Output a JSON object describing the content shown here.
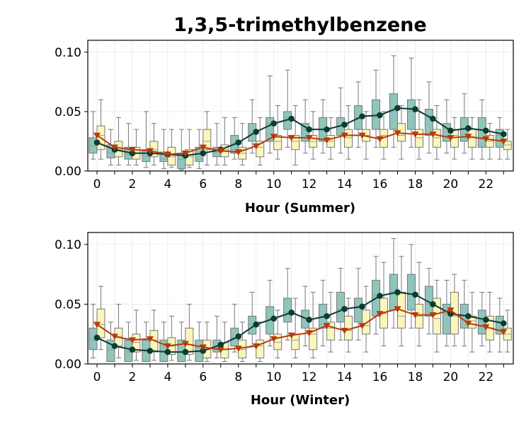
{
  "chart_data": {
    "title": "1,3,5-trimethylbenzene",
    "type": "box",
    "colors": {
      "box_a_fill": "#8fc5bb",
      "box_b_fill": "#fbf6bd",
      "line_a": "#0c3b30",
      "line_b": "#b83b08",
      "whisker": "#777777"
    },
    "panels": [
      {
        "xlabel": "Hour (Summer)",
        "ylim": [
          0,
          0.11
        ],
        "yticks": [
          0.0,
          0.05,
          0.1
        ],
        "ytick_labels": [
          "0.00",
          "0.05",
          "0.10"
        ],
        "xticks": [
          0,
          2,
          4,
          6,
          8,
          10,
          12,
          14,
          16,
          18,
          20,
          22
        ],
        "xtick_labels": [
          "0",
          "2",
          "4",
          "6",
          "8",
          "10",
          "12",
          "14",
          "16",
          "18",
          "20",
          "22"
        ],
        "series": [
          {
            "marker": "circle",
            "line": [
              0.024,
              0.018,
              0.015,
              0.015,
              0.014,
              0.013,
              0.015,
              0.018,
              0.024,
              0.033,
              0.04,
              0.044,
              0.035,
              0.035,
              0.039,
              0.046,
              0.047,
              0.053,
              0.052,
              0.044,
              0.034,
              0.036,
              0.034,
              0.031
            ],
            "boxes": [
              [
                0.01,
                0.015,
                0.021,
                0.028,
                0.05
              ],
              [
                0.005,
                0.011,
                0.015,
                0.022,
                0.035
              ],
              [
                0.005,
                0.01,
                0.014,
                0.02,
                0.04
              ],
              [
                0.003,
                0.008,
                0.012,
                0.018,
                0.05
              ],
              [
                0.002,
                0.008,
                0.01,
                0.016,
                0.035
              ],
              [
                0.001,
                0.002,
                0.01,
                0.015,
                0.035
              ],
              [
                0.002,
                0.008,
                0.01,
                0.02,
                0.035
              ],
              [
                0.005,
                0.012,
                0.016,
                0.02,
                0.04
              ],
              [
                0.01,
                0.015,
                0.022,
                0.03,
                0.045
              ],
              [
                0.015,
                0.025,
                0.032,
                0.04,
                0.06
              ],
              [
                0.015,
                0.025,
                0.04,
                0.045,
                0.08
              ],
              [
                0.02,
                0.035,
                0.045,
                0.05,
                0.085
              ],
              [
                0.015,
                0.025,
                0.035,
                0.04,
                0.06
              ],
              [
                0.015,
                0.025,
                0.035,
                0.045,
                0.06
              ],
              [
                0.015,
                0.03,
                0.038,
                0.045,
                0.07
              ],
              [
                0.02,
                0.035,
                0.045,
                0.055,
                0.075
              ],
              [
                0.02,
                0.035,
                0.045,
                0.06,
                0.085
              ],
              [
                0.02,
                0.035,
                0.05,
                0.065,
                0.097
              ],
              [
                0.02,
                0.035,
                0.05,
                0.06,
                0.095
              ],
              [
                0.015,
                0.03,
                0.045,
                0.052,
                0.075
              ],
              [
                0.015,
                0.025,
                0.035,
                0.04,
                0.06
              ],
              [
                0.015,
                0.025,
                0.035,
                0.045,
                0.065
              ],
              [
                0.01,
                0.02,
                0.035,
                0.045,
                0.06
              ],
              [
                0.01,
                0.02,
                0.03,
                0.035,
                0.045
              ]
            ]
          },
          {
            "marker": "triangle-down",
            "line": [
              0.03,
              0.02,
              0.018,
              0.017,
              0.014,
              0.015,
              0.02,
              0.017,
              0.016,
              0.021,
              0.029,
              0.028,
              0.028,
              0.026,
              0.03,
              0.03,
              0.027,
              0.032,
              0.031,
              0.031,
              0.028,
              0.029,
              0.027,
              0.025
            ],
            "boxes": [
              [
                0.01,
                0.018,
                0.03,
                0.038,
                0.06
              ],
              [
                0.005,
                0.012,
                0.018,
                0.025,
                0.045
              ],
              [
                0.005,
                0.01,
                0.015,
                0.02,
                0.035
              ],
              [
                0.005,
                0.012,
                0.018,
                0.025,
                0.04
              ],
              [
                0.003,
                0.005,
                0.012,
                0.02,
                0.035
              ],
              [
                0.003,
                0.005,
                0.012,
                0.018,
                0.035
              ],
              [
                0.005,
                0.018,
                0.025,
                0.035,
                0.05
              ],
              [
                0.005,
                0.012,
                0.018,
                0.022,
                0.045
              ],
              [
                0.005,
                0.01,
                0.015,
                0.02,
                0.04
              ],
              [
                0.005,
                0.012,
                0.02,
                0.025,
                0.045
              ],
              [
                0.01,
                0.018,
                0.025,
                0.03,
                0.055
              ],
              [
                0.005,
                0.018,
                0.025,
                0.03,
                0.055
              ],
              [
                0.01,
                0.02,
                0.025,
                0.03,
                0.05
              ],
              [
                0.01,
                0.02,
                0.025,
                0.03,
                0.045
              ],
              [
                0.01,
                0.02,
                0.028,
                0.035,
                0.055
              ],
              [
                0.01,
                0.025,
                0.03,
                0.035,
                0.05
              ],
              [
                0.01,
                0.02,
                0.03,
                0.035,
                0.05
              ],
              [
                0.01,
                0.025,
                0.03,
                0.04,
                0.055
              ],
              [
                0.01,
                0.02,
                0.028,
                0.035,
                0.06
              ],
              [
                0.01,
                0.02,
                0.028,
                0.035,
                0.055
              ],
              [
                0.01,
                0.02,
                0.03,
                0.035,
                0.045
              ],
              [
                0.01,
                0.02,
                0.028,
                0.035,
                0.045
              ],
              [
                0.01,
                0.02,
                0.025,
                0.03,
                0.04
              ],
              [
                0.01,
                0.018,
                0.022,
                0.025,
                0.035
              ]
            ]
          }
        ]
      },
      {
        "xlabel": "Hour (Winter)",
        "ylim": [
          0,
          0.11
        ],
        "yticks": [
          0.0,
          0.05,
          0.1
        ],
        "ytick_labels": [
          "0.00",
          "0.05",
          "0.10"
        ],
        "xticks": [
          0,
          2,
          4,
          6,
          8,
          10,
          12,
          14,
          16,
          18,
          20,
          22
        ],
        "xtick_labels": [
          "0",
          "2",
          "4",
          "6",
          "8",
          "10",
          "12",
          "14",
          "16",
          "18",
          "20",
          "22"
        ],
        "series": [
          {
            "marker": "circle",
            "line": [
              0.022,
              0.015,
              0.012,
              0.011,
              0.01,
              0.01,
              0.011,
              0.016,
              0.023,
              0.033,
              0.038,
              0.043,
              0.037,
              0.04,
              0.046,
              0.048,
              0.057,
              0.06,
              0.058,
              0.05,
              0.042,
              0.04,
              0.037,
              0.034
            ],
            "boxes": [
              [
                0.005,
                0.012,
                0.02,
                0.03,
                0.05
              ],
              [
                0.002,
                0.002,
                0.012,
                0.02,
                0.035
              ],
              [
                0.002,
                0.002,
                0.01,
                0.02,
                0.035
              ],
              [
                0.002,
                0.002,
                0.01,
                0.02,
                0.035
              ],
              [
                0.002,
                0.002,
                0.01,
                0.02,
                0.035
              ],
              [
                0.002,
                0.002,
                0.01,
                0.02,
                0.035
              ],
              [
                0.002,
                0.002,
                0.01,
                0.02,
                0.035
              ],
              [
                0.005,
                0.01,
                0.015,
                0.02,
                0.04
              ],
              [
                0.01,
                0.015,
                0.022,
                0.03,
                0.05
              ],
              [
                0.015,
                0.025,
                0.033,
                0.04,
                0.06
              ],
              [
                0.015,
                0.025,
                0.038,
                0.048,
                0.07
              ],
              [
                0.02,
                0.035,
                0.043,
                0.055,
                0.08
              ],
              [
                0.015,
                0.03,
                0.038,
                0.045,
                0.065
              ],
              [
                0.015,
                0.03,
                0.04,
                0.05,
                0.07
              ],
              [
                0.02,
                0.035,
                0.046,
                0.06,
                0.08
              ],
              [
                0.02,
                0.035,
                0.048,
                0.055,
                0.08
              ],
              [
                0.025,
                0.04,
                0.057,
                0.07,
                0.09
              ],
              [
                0.03,
                0.045,
                0.06,
                0.075,
                0.105
              ],
              [
                0.03,
                0.045,
                0.058,
                0.075,
                0.1
              ],
              [
                0.025,
                0.04,
                0.05,
                0.065,
                0.08
              ],
              [
                0.015,
                0.025,
                0.042,
                0.05,
                0.07
              ],
              [
                0.015,
                0.03,
                0.04,
                0.05,
                0.07
              ],
              [
                0.015,
                0.025,
                0.036,
                0.045,
                0.06
              ],
              [
                0.01,
                0.025,
                0.034,
                0.04,
                0.055
              ]
            ]
          },
          {
            "marker": "triangle-down",
            "line": [
              0.033,
              0.023,
              0.02,
              0.021,
              0.015,
              0.017,
              0.014,
              0.012,
              0.013,
              0.015,
              0.021,
              0.024,
              0.026,
              0.032,
              0.028,
              0.032,
              0.042,
              0.046,
              0.041,
              0.041,
              0.045,
              0.034,
              0.031,
              0.027
            ],
            "boxes": [
              [
                0.012,
                0.022,
                0.033,
                0.046,
                0.065
              ],
              [
                0.005,
                0.015,
                0.023,
                0.03,
                0.05
              ],
              [
                0.003,
                0.01,
                0.018,
                0.025,
                0.045
              ],
              [
                0.003,
                0.01,
                0.02,
                0.028,
                0.045
              ],
              [
                0.003,
                0.008,
                0.015,
                0.022,
                0.04
              ],
              [
                0.003,
                0.008,
                0.016,
                0.03,
                0.05
              ],
              [
                0.002,
                0.005,
                0.012,
                0.02,
                0.035
              ],
              [
                0.002,
                0.005,
                0.012,
                0.018,
                0.035
              ],
              [
                0.002,
                0.005,
                0.012,
                0.02,
                0.035
              ],
              [
                0.002,
                0.005,
                0.015,
                0.02,
                0.035
              ],
              [
                0.005,
                0.012,
                0.018,
                0.025,
                0.045
              ],
              [
                0.005,
                0.012,
                0.02,
                0.025,
                0.055
              ],
              [
                0.005,
                0.012,
                0.025,
                0.03,
                0.06
              ],
              [
                0.01,
                0.02,
                0.03,
                0.035,
                0.06
              ],
              [
                0.01,
                0.02,
                0.028,
                0.04,
                0.055
              ],
              [
                0.01,
                0.025,
                0.032,
                0.045,
                0.065
              ],
              [
                0.015,
                0.03,
                0.042,
                0.055,
                0.085
              ],
              [
                0.015,
                0.03,
                0.04,
                0.06,
                0.09
              ],
              [
                0.015,
                0.03,
                0.04,
                0.05,
                0.085
              ],
              [
                0.01,
                0.025,
                0.038,
                0.055,
                0.07
              ],
              [
                0.015,
                0.025,
                0.04,
                0.06,
                0.075
              ],
              [
                0.01,
                0.03,
                0.036,
                0.04,
                0.06
              ],
              [
                0.01,
                0.02,
                0.03,
                0.04,
                0.06
              ],
              [
                0.01,
                0.02,
                0.025,
                0.03,
                0.045
              ]
            ]
          }
        ]
      }
    ]
  }
}
